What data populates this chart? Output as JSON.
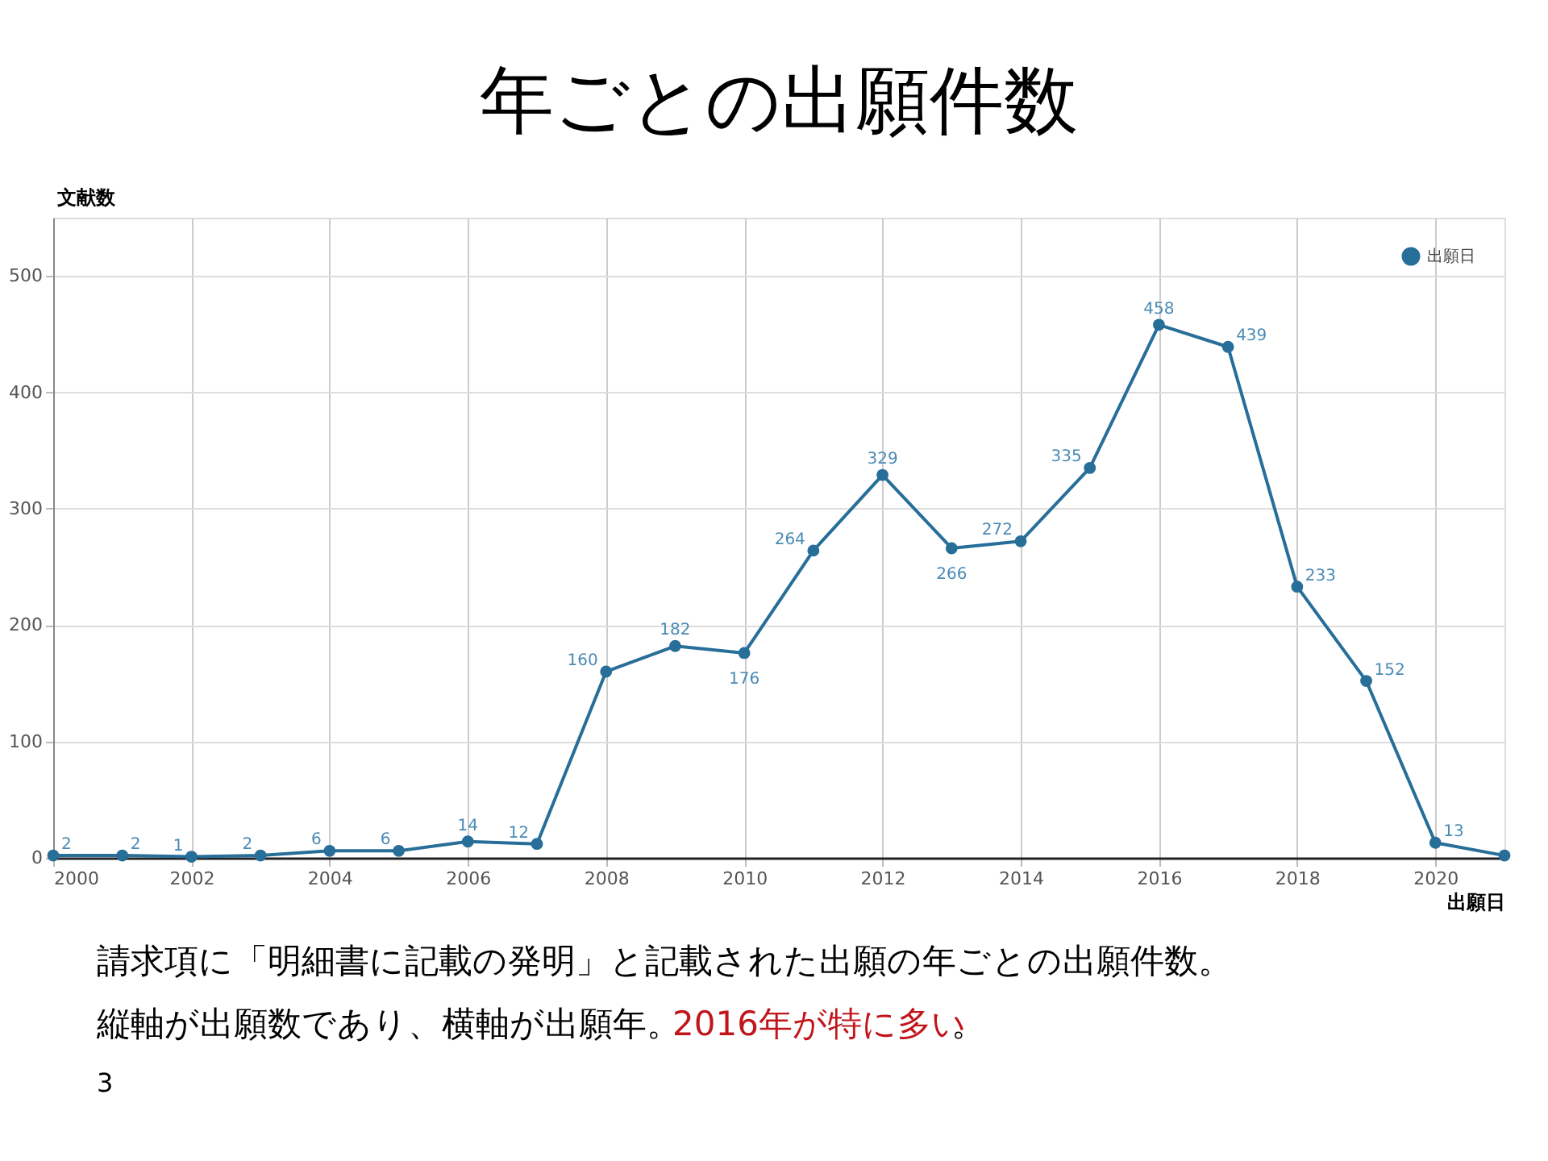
{
  "chart_data": {
    "type": "line",
    "title": "年ごとの出願件数",
    "xlabel": "出願日",
    "ylabel": "文献数",
    "x": [
      2000,
      2001,
      2002,
      2003,
      2004,
      2005,
      2006,
      2007,
      2008,
      2009,
      2010,
      2011,
      2012,
      2013,
      2014,
      2015,
      2016,
      2017,
      2018,
      2019,
      2020,
      2021
    ],
    "series": [
      {
        "name": "出願日",
        "color": "#276e99",
        "values": [
          2,
          2,
          1,
          2,
          6,
          6,
          14,
          12,
          160,
          182,
          176,
          264,
          329,
          266,
          272,
          335,
          458,
          439,
          233,
          152,
          13,
          2
        ],
        "value_labels": [
          "2",
          "2",
          "1",
          "2",
          "6",
          "6",
          "14",
          "12",
          "160",
          "182",
          "176",
          "264",
          "329",
          "266",
          "272",
          "335",
          "458",
          "439",
          "233",
          "152",
          "13",
          null
        ]
      }
    ],
    "xlim": [
      2000,
      2021
    ],
    "xticks": [
      2000,
      2002,
      2004,
      2006,
      2008,
      2010,
      2012,
      2014,
      2016,
      2018,
      2020
    ],
    "ylim": [
      0,
      550
    ],
    "yticks": [
      0,
      100,
      200,
      300,
      400,
      500
    ],
    "grid": true,
    "legend": "top right",
    "marker": "circle",
    "line_style": "solid",
    "annotations": [
      "請求項に「明細書に記載の発明」と記載された出願の年ごとの出願件数。",
      "縦軸が出願数であり、横軸が出願年。",
      "2016年が特に多い",
      "。",
      "3"
    ]
  }
}
